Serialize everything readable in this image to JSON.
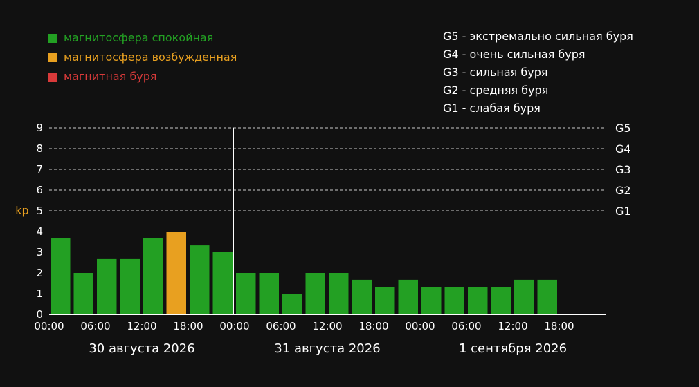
{
  "legend": {
    "items": [
      {
        "label": "магнитосфера спокойная",
        "color": "#23a023"
      },
      {
        "label": "магнитосфера возбужденная",
        "color": "#e8a020"
      },
      {
        "label": "магнитная буря",
        "color": "#d93a3a"
      }
    ]
  },
  "storm_scale": [
    "G5 - экстремально сильная буря",
    "G4 - очень сильная буря",
    "G3 - сильная буря",
    "G2 - средняя буря",
    "G1 - слабая буря"
  ],
  "chart_data": {
    "type": "bar",
    "ylabel": "kp",
    "ylim": [
      0,
      9
    ],
    "yticks": [
      0,
      1,
      2,
      3,
      4,
      5,
      6,
      7,
      8,
      9
    ],
    "grid": "dashed horizontal lines at kp 5-9",
    "right_labels": [
      {
        "value": 5,
        "label": "G1"
      },
      {
        "value": 6,
        "label": "G2"
      },
      {
        "value": 7,
        "label": "G3"
      },
      {
        "value": 8,
        "label": "G4"
      },
      {
        "value": 9,
        "label": "G5"
      }
    ],
    "days": [
      "30 августа 2026",
      "31 августа 2026",
      "1 сентября 2026"
    ],
    "xticks": [
      "00:00",
      "06:00",
      "12:00",
      "18:00",
      "00:00",
      "06:00",
      "12:00",
      "18:00",
      "00:00",
      "06:00",
      "12:00",
      "18:00"
    ],
    "slots_per_day": 8,
    "interval_hours": 3,
    "values": [
      3.67,
      2,
      2.67,
      2.67,
      3.67,
      4,
      3.33,
      3,
      2,
      2,
      1,
      2,
      2,
      1.67,
      1.33,
      1.67,
      1.33,
      1.33,
      1.33,
      1.33,
      1.67,
      1.67
    ],
    "colors": {
      "quiet": "#23a023",
      "active": "#e8a020",
      "storm": "#d93a3a"
    },
    "thresholds": {
      "active": 4,
      "storm": 5
    }
  }
}
